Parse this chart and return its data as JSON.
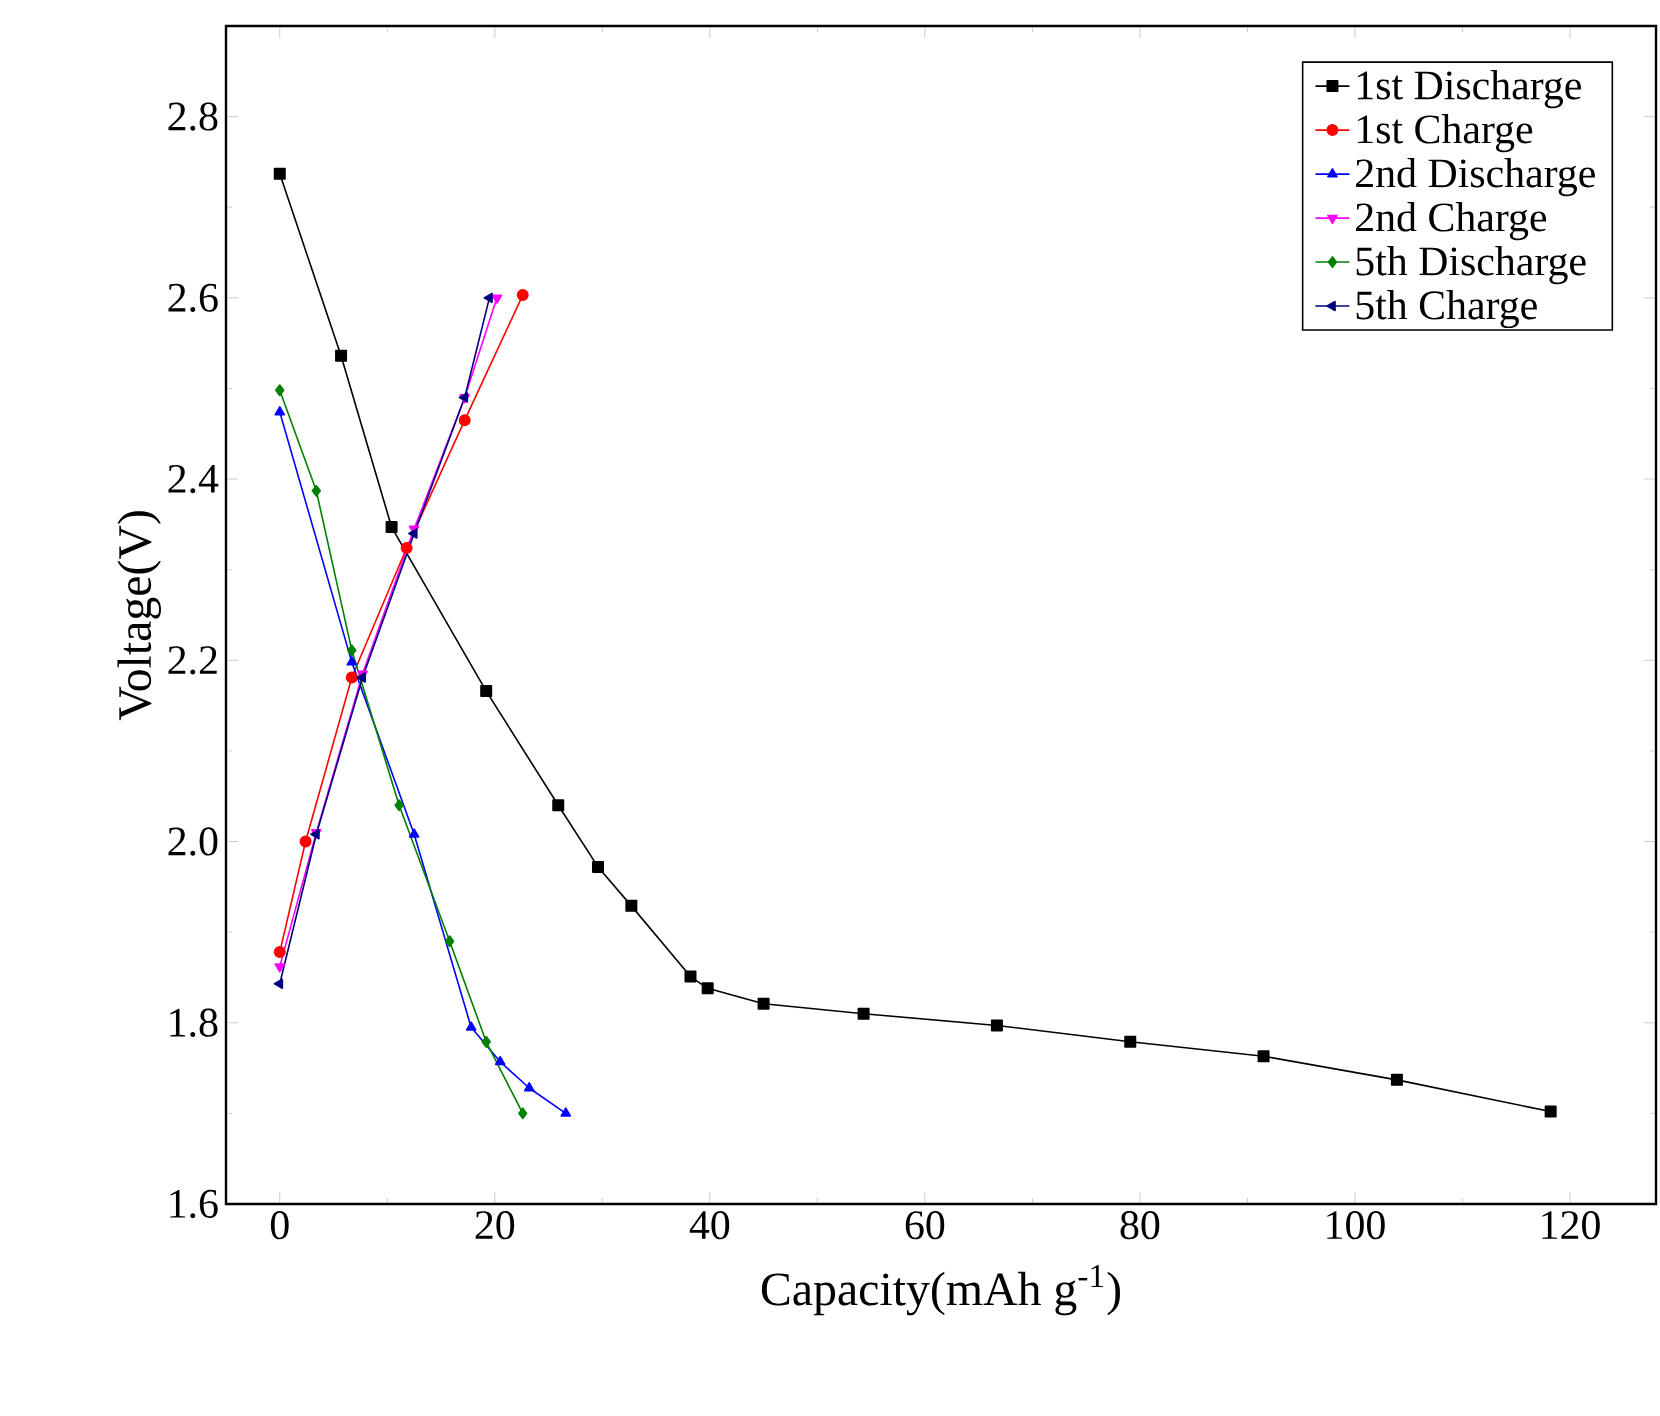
{
  "chart_data": {
    "type": "line",
    "xlabel": "Capacity(mAh g$^{-1}$)",
    "ylabel": "Voltage(V)",
    "xlim": [
      -5,
      128
    ],
    "ylim": [
      1.6,
      2.9
    ],
    "xticks": [
      0,
      20,
      40,
      60,
      80,
      100,
      120
    ],
    "yticks": [
      1.6,
      1.8,
      {
        "value": 2.0,
        "label": "2.0"
      },
      2.2,
      2.4,
      2.6,
      2.8
    ],
    "legend": "top right",
    "grid": false,
    "series": [
      {
        "name": "1st Discharge",
        "color": "#000000",
        "marker": "square",
        "x": [
          0,
          5.7,
          10.4,
          19.2,
          25.9,
          29.6,
          32.7,
          38.2,
          39.8,
          45.0,
          54.3,
          66.7,
          79.1,
          91.5,
          103.9,
          118.2
        ],
        "values": [
          2.737,
          2.536,
          2.347,
          2.166,
          2.04,
          1.972,
          1.929,
          1.851,
          1.838,
          1.821,
          1.81,
          1.797,
          1.779,
          1.763,
          1.737,
          1.702
        ]
      },
      {
        "name": "1st Charge",
        "color": "#ff0000",
        "marker": "circle",
        "x": [
          0,
          2.4,
          6.7,
          11.8,
          17.2,
          22.6
        ],
        "values": [
          1.878,
          2.0,
          2.181,
          2.324,
          2.465,
          2.603
        ]
      },
      {
        "name": "2nd Discharge",
        "color": "#0000ff",
        "marker": "triangle",
        "x": [
          0,
          6.7,
          12.5,
          17.8,
          20.5,
          23.2,
          26.6
        ],
        "values": [
          2.474,
          2.198,
          2.008,
          1.795,
          1.757,
          1.728,
          1.7
        ]
      },
      {
        "name": "2nd Charge",
        "color": "#ff00ff",
        "marker": "triangle down",
        "x": [
          0,
          3.4,
          7.7,
          12.5,
          17.2,
          20.2
        ],
        "values": [
          1.862,
          2.01,
          2.185,
          2.345,
          2.49,
          2.6
        ]
      },
      {
        "name": "5th Discharge",
        "color": "#008000",
        "marker": "diamond",
        "x": [
          0,
          3.4,
          6.7,
          11.1,
          15.8,
          19.2,
          22.6
        ],
        "values": [
          2.498,
          2.387,
          2.211,
          2.04,
          1.89,
          1.779,
          1.7
        ]
      },
      {
        "name": "5th Charge",
        "color": "#000080",
        "marker": "triangle left",
        "x": [
          0,
          3.4,
          7.7,
          12.5,
          17.2,
          19.5
        ],
        "values": [
          1.843,
          2.008,
          2.181,
          2.34,
          2.49,
          2.6
        ]
      }
    ]
  }
}
